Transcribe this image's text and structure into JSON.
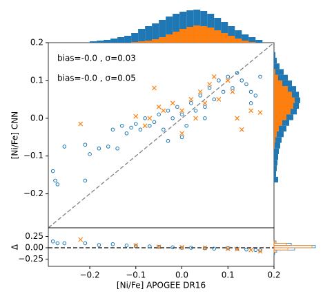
{
  "chart_data": [
    {
      "type": "scatter",
      "ylabel": "[Ni/Fe] CNN",
      "xlim": [
        -0.29,
        0.2
      ],
      "ylim": [
        -0.29,
        0.2
      ],
      "yticks": [
        {
          "value": -0.2,
          "label": "−0.2"
        },
        {
          "value": -0.1,
          "label": "−0.1"
        },
        {
          "value": 0,
          "label": "0.0"
        },
        0.1,
        0.2
      ],
      "identity_line": true,
      "annotations": [
        {
          "text": "bias=-0.0 , σ=0.03",
          "color": "#1f77b4"
        },
        {
          "text": "bias=-0.0 , σ=0.05",
          "color": "#ff7f0e"
        }
      ],
      "series": [
        {
          "marker": "circle",
          "color": "#1f77b4",
          "x": [
            -0.28,
            -0.275,
            -0.27,
            -0.255,
            -0.21,
            -0.2,
            -0.21,
            -0.18,
            -0.16,
            -0.15,
            -0.14,
            -0.13,
            -0.12,
            -0.11,
            -0.1,
            -0.09,
            -0.08,
            -0.07,
            -0.06,
            -0.05,
            -0.04,
            -0.03,
            -0.02,
            -0.01,
            0.0,
            0.01,
            0.02,
            0.03,
            0.04,
            0.05,
            0.06,
            0.07,
            0.08,
            0.09,
            0.1,
            0.11,
            0.12,
            0.13,
            0.14,
            0.15,
            0.16,
            0.17,
            0.0,
            -0.03,
            0.05,
            0.15
          ],
          "values": [
            -0.14,
            -0.165,
            -0.175,
            -0.075,
            -0.07,
            -0.095,
            -0.165,
            -0.08,
            -0.075,
            -0.03,
            -0.08,
            -0.02,
            -0.04,
            -0.025,
            -0.015,
            -0.03,
            0.0,
            -0.02,
            -0.01,
            0.01,
            -0.03,
            0.02,
            0.0,
            0.03,
            0.01,
            -0.02,
            0.04,
            0.02,
            0.06,
            0.03,
            0.08,
            0.05,
            0.1,
            0.07,
            0.11,
            0.08,
            0.12,
            0.1,
            0.09,
            0.07,
            0.06,
            0.11,
            -0.05,
            -0.06,
            0.0,
            0.04
          ]
        },
        {
          "marker": "x",
          "color": "#ff7f0e",
          "x": [
            -0.22,
            -0.1,
            -0.08,
            -0.07,
            -0.05,
            -0.04,
            -0.02,
            0.0,
            0.02,
            0.03,
            0.04,
            0.05,
            0.06,
            0.08,
            0.1,
            0.11,
            0.12,
            0.13,
            0.15,
            0.17,
            -0.06,
            0.0,
            0.07
          ],
          "values": [
            -0.015,
            0.005,
            -0.02,
            0.0,
            0.03,
            0.02,
            0.04,
            0.02,
            0.05,
            0.0,
            0.07,
            0.04,
            0.09,
            0.05,
            0.1,
            0.07,
            0.0,
            -0.03,
            0.02,
            0.015,
            0.08,
            -0.04,
            0.11
          ]
        }
      ]
    },
    {
      "type": "scatter",
      "xlabel": "[Ni/Fe] APOGEE DR16",
      "ylabel": "Δ",
      "xlim": [
        -0.29,
        0.2
      ],
      "ylim": [
        -0.41,
        0.44
      ],
      "xticks": [
        {
          "value": -0.2,
          "label": "−0.2"
        },
        {
          "value": -0.1,
          "label": "−0.1"
        },
        {
          "value": 0,
          "label": "0.0"
        },
        0.1,
        0.2
      ],
      "yticks": [
        {
          "value": -0.25,
          "label": "−0.25"
        },
        {
          "value": 0,
          "label": "0.00"
        },
        0.25
      ],
      "zero_line": true,
      "series": [
        {
          "marker": "circle",
          "color": "#1f77b4",
          "x": [
            -0.28,
            -0.27,
            -0.255,
            -0.21,
            -0.18,
            -0.15,
            -0.12,
            -0.1,
            -0.07,
            -0.05,
            -0.02,
            0.0,
            0.02,
            0.05,
            0.07,
            0.1,
            0.12,
            0.14,
            0.16,
            0.17
          ],
          "values": [
            0.14,
            0.1,
            0.1,
            0.1,
            0.06,
            0.08,
            0.05,
            0.04,
            0.03,
            0.02,
            0.01,
            0.0,
            0.0,
            -0.01,
            -0.02,
            -0.01,
            -0.02,
            -0.04,
            -0.05,
            -0.06
          ]
        },
        {
          "marker": "x",
          "color": "#ff7f0e",
          "x": [
            -0.22,
            -0.1,
            -0.05,
            0.0,
            0.05,
            0.1,
            0.12,
            0.15,
            0.17
          ],
          "values": [
            0.18,
            0.05,
            0.02,
            0.01,
            0.0,
            -0.02,
            -0.03,
            -0.05,
            -0.08
          ]
        }
      ]
    },
    {
      "type": "histogram",
      "orientation": "top",
      "style": "filled",
      "bins": [
        -0.2,
        -0.185,
        -0.17,
        -0.155,
        -0.14,
        -0.125,
        -0.11,
        -0.095,
        -0.08,
        -0.065,
        -0.05,
        -0.035,
        -0.02,
        -0.005,
        0.01,
        0.025,
        0.04,
        0.055,
        0.07,
        0.085,
        0.1,
        0.115,
        0.13,
        0.145,
        0.16,
        0.175
      ],
      "series": [
        {
          "color": "#1f77b4",
          "values": [
            2,
            3,
            4,
            6,
            8,
            10,
            14,
            20,
            24,
            28,
            33,
            38,
            42,
            45,
            47,
            48,
            46,
            42,
            36,
            30,
            24,
            18,
            12,
            8,
            4
          ]
        },
        {
          "color": "#ff7f0e",
          "values": [
            0,
            0,
            0,
            0,
            0,
            0,
            1,
            2,
            3,
            5,
            8,
            12,
            16,
            20,
            23,
            25,
            24,
            22,
            18,
            14,
            10,
            6,
            3,
            1,
            0
          ]
        }
      ]
    },
    {
      "type": "histogram",
      "orientation": "right",
      "style": "filled",
      "bins": [
        -0.17,
        -0.155,
        -0.14,
        -0.125,
        -0.11,
        -0.095,
        -0.08,
        -0.065,
        -0.05,
        -0.035,
        -0.02,
        -0.005,
        0.01,
        0.025,
        0.04,
        0.055,
        0.07,
        0.085,
        0.1,
        0.115,
        0.13,
        0.145,
        0.16,
        0.175
      ],
      "series": [
        {
          "color": "#1f77b4",
          "values": [
            6,
            3,
            4,
            5,
            6,
            7,
            9,
            11,
            14,
            18,
            22,
            28,
            33,
            36,
            38,
            36,
            32,
            26,
            20,
            14,
            8,
            4,
            2
          ]
        },
        {
          "color": "#ff7f0e",
          "values": [
            0,
            0,
            0,
            0,
            0,
            0,
            1,
            2,
            4,
            7,
            12,
            18,
            24,
            28,
            30,
            26,
            20,
            12,
            6,
            2,
            0,
            0,
            0
          ]
        }
      ]
    },
    {
      "type": "histogram",
      "orientation": "right-residual",
      "style": "step",
      "bins": [
        -0.2,
        -0.15,
        -0.1,
        -0.05,
        0.0,
        0.05,
        0.1,
        0.15,
        0.2
      ],
      "series": [
        {
          "color": "#1f77b4",
          "values": [
            0,
            1,
            4,
            30,
            60,
            25,
            3,
            0
          ]
        },
        {
          "color": "#ff7f0e",
          "values": [
            0,
            0,
            2,
            20,
            55,
            18,
            1,
            0
          ]
        }
      ]
    }
  ]
}
